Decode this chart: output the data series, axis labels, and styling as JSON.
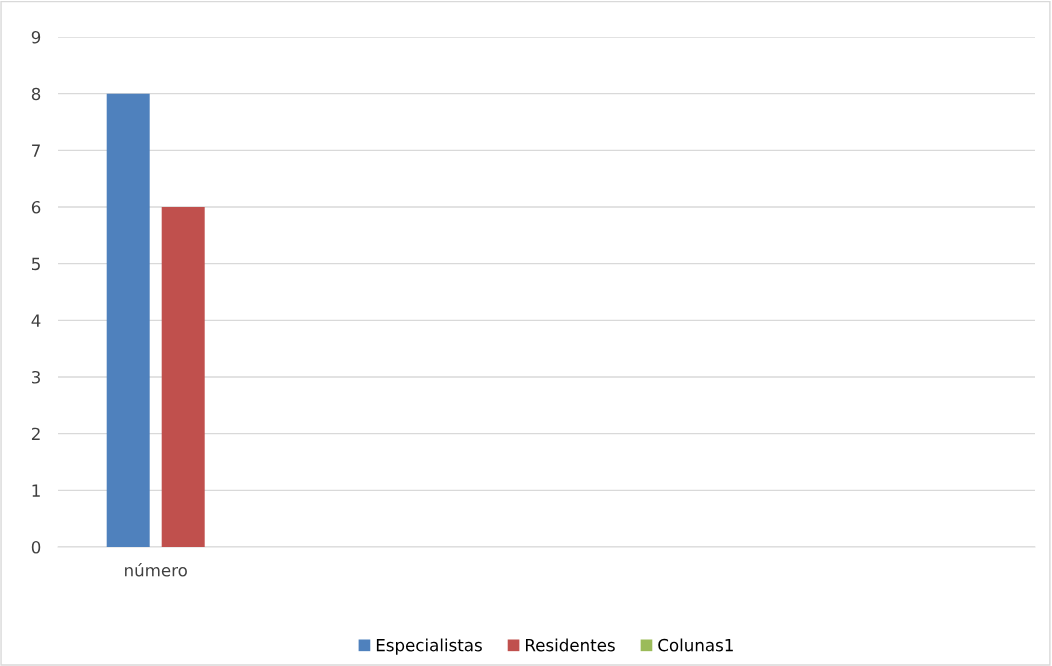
{
  "chart_data": {
    "type": "bar",
    "categories": [
      "número",
      null,
      null,
      null,
      null
    ],
    "series": [
      {
        "name": "Especialistas",
        "color": "#4f81bd",
        "values": [
          8,
          null,
          null,
          null,
          null
        ]
      },
      {
        "name": "Residentes",
        "color": "#c0504d",
        "values": [
          6,
          null,
          null,
          null,
          null
        ]
      },
      {
        "name": "Colunas1",
        "color": "#9bbb59",
        "values": [
          null,
          null,
          null,
          null,
          null
        ]
      }
    ],
    "ylim": [
      0,
      9
    ],
    "yticks": [
      0,
      1,
      2,
      3,
      4,
      5,
      6,
      7,
      8,
      9
    ],
    "grid": "y",
    "legend": "bottom"
  }
}
